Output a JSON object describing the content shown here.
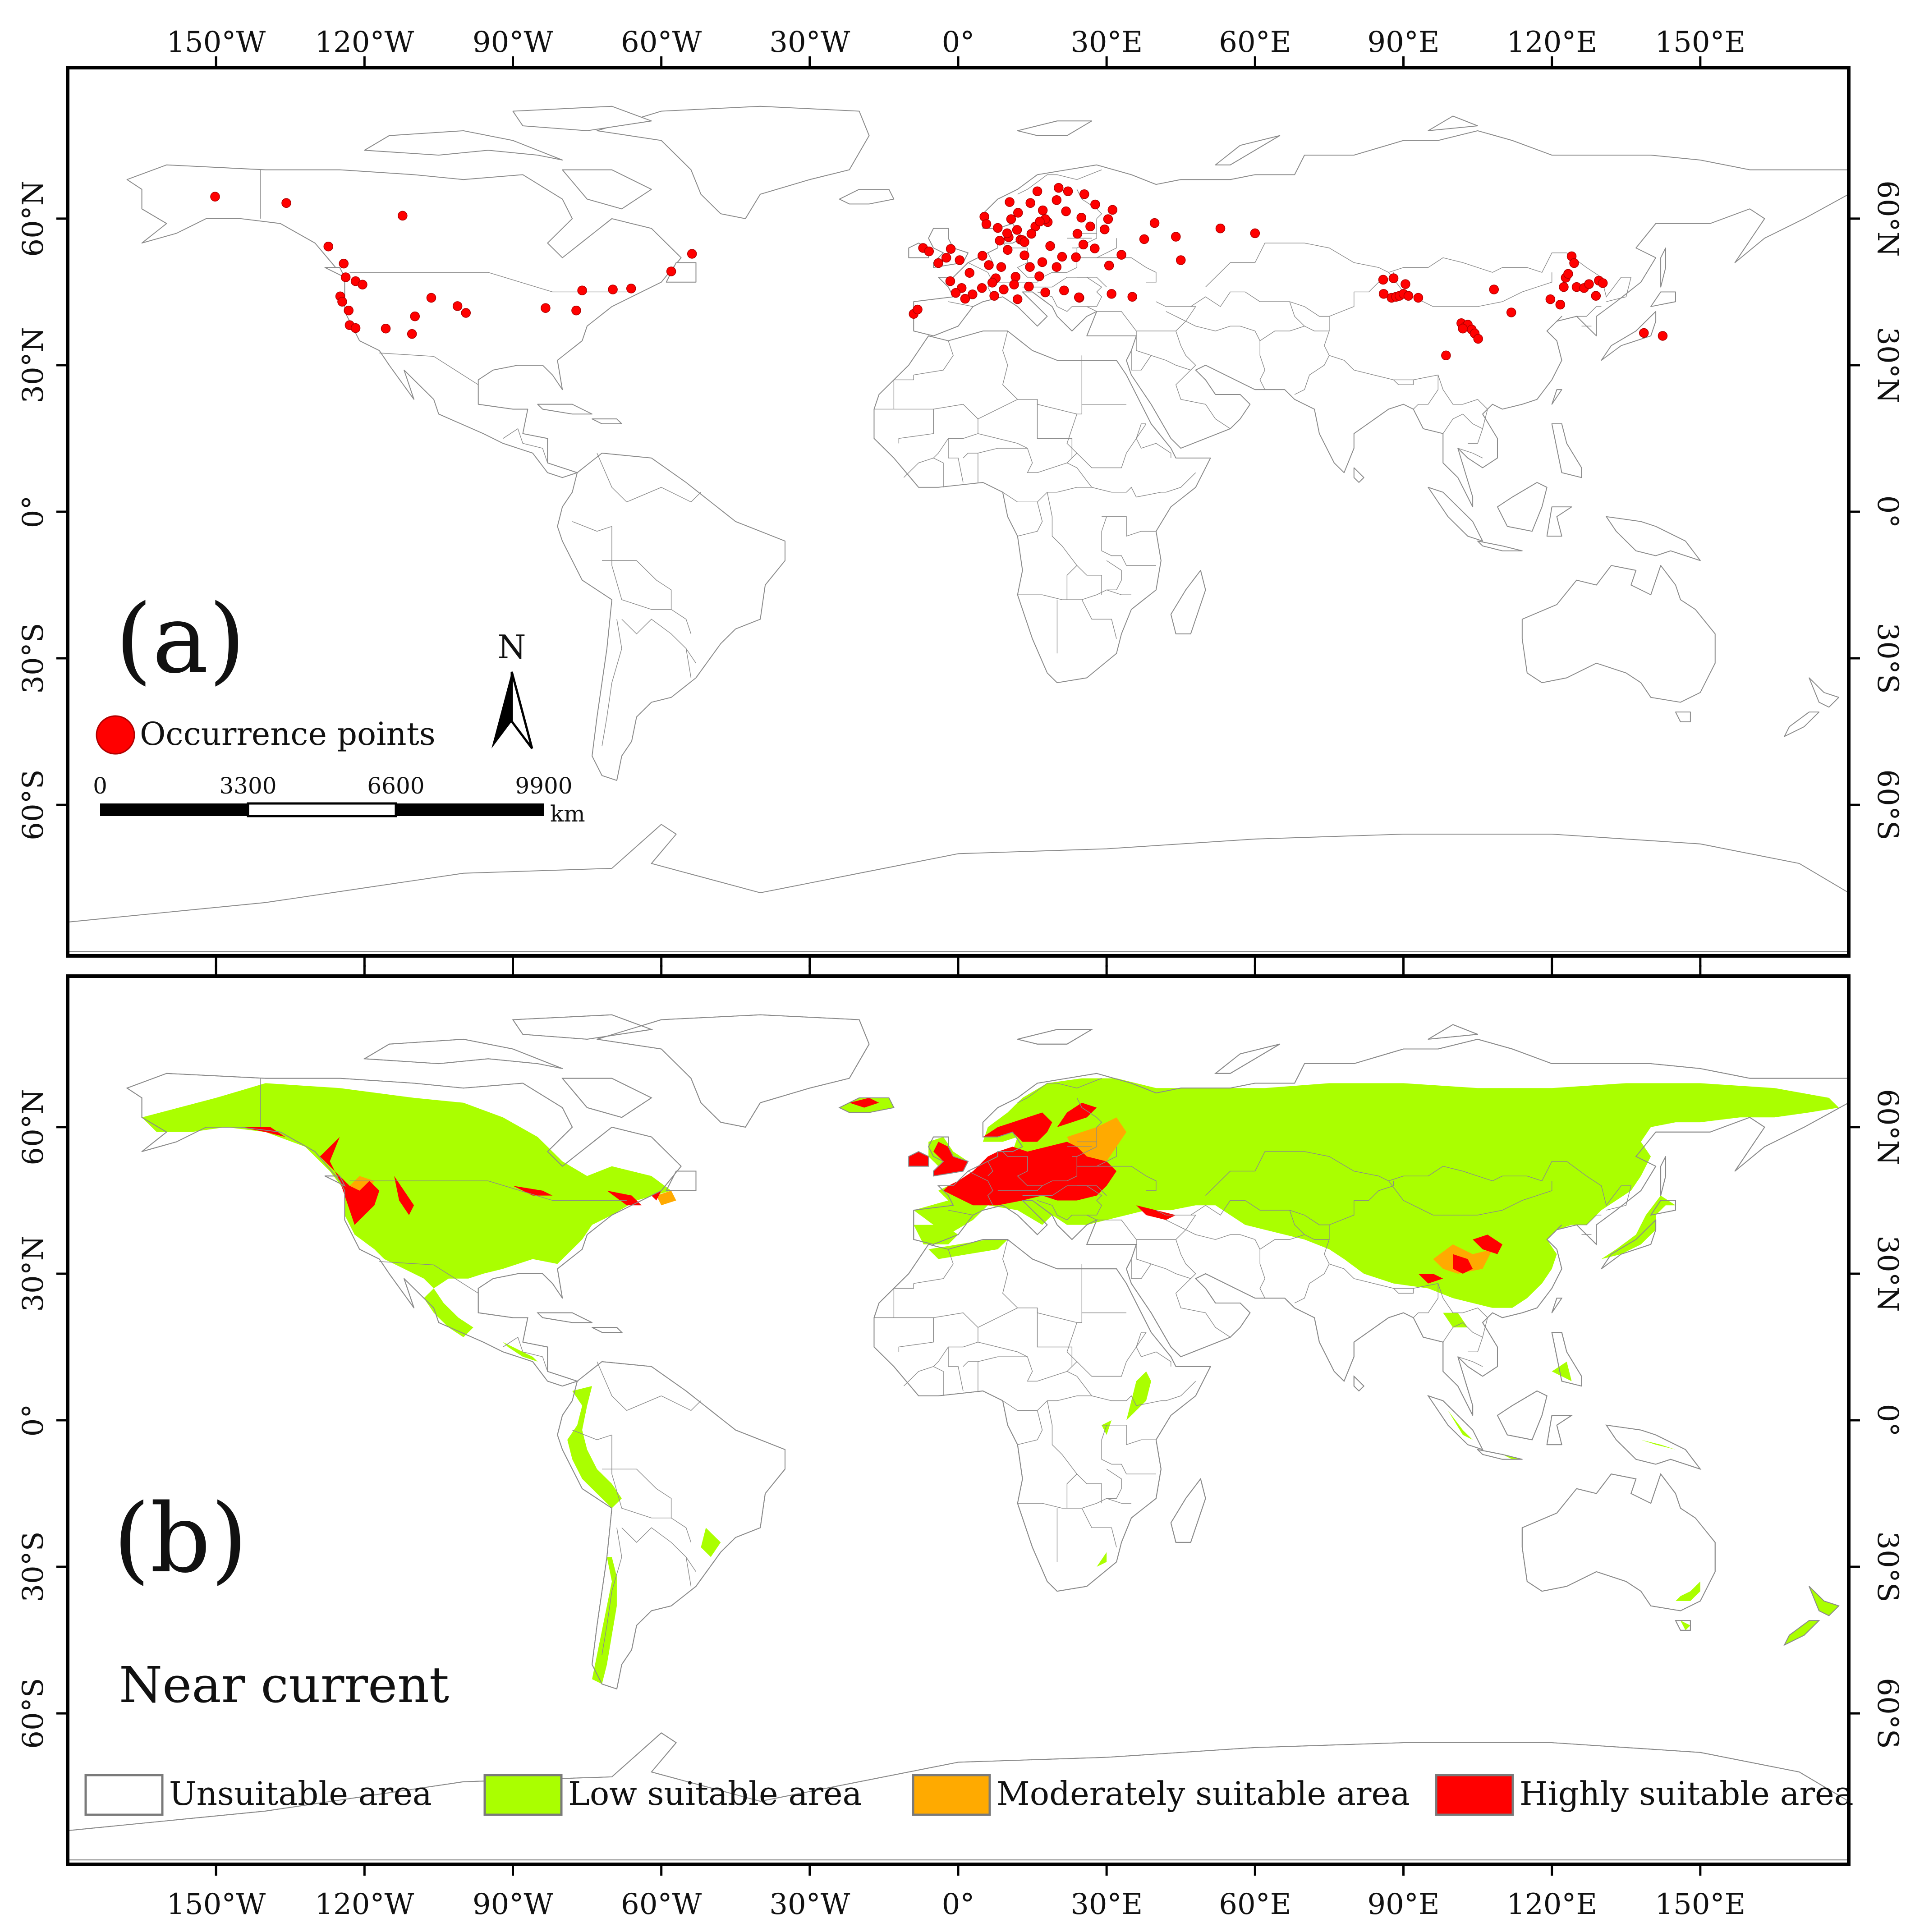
{
  "axes": {
    "lon_labels": [
      "150°W",
      "120°W",
      "90°W",
      "60°W",
      "30°W",
      "0°",
      "30°E",
      "60°E",
      "90°E",
      "120°E",
      "150°E"
    ],
    "lon_values": [
      -150,
      -120,
      -90,
      -60,
      -30,
      0,
      30,
      60,
      90,
      120,
      150
    ],
    "lat_labels": [
      "60°N",
      "30°N",
      "0°",
      "30°S",
      "60°S"
    ],
    "lat_values": [
      60,
      30,
      0,
      -30,
      -60
    ],
    "extent": {
      "lon_min": -180,
      "lon_max": 180,
      "lat_min": -90,
      "lat_max": 90
    }
  },
  "panel_a": {
    "label": "(a)",
    "legend_label": "Occurrence points",
    "point_color": "#ff0000",
    "north_arrow_label": "N",
    "scale_bar": {
      "ticks": [
        "0",
        "3300",
        "6600",
        "9900"
      ],
      "unit": "km"
    },
    "occurrences": [
      [
        -150.2,
        64.5
      ],
      [
        -135.8,
        63.2
      ],
      [
        -127.3,
        54.3
      ],
      [
        -124.2,
        50.8
      ],
      [
        -123.8,
        48.0
      ],
      [
        -121.8,
        47.2
      ],
      [
        -120.4,
        46.5
      ],
      [
        -124.9,
        44.1
      ],
      [
        -124.5,
        43.0
      ],
      [
        -123.2,
        41.2
      ],
      [
        -123.0,
        38.2
      ],
      [
        -121.8,
        37.6
      ],
      [
        -112.3,
        60.6
      ],
      [
        -106.5,
        43.8
      ],
      [
        -101.2,
        42.1
      ],
      [
        -99.5,
        40.7
      ],
      [
        -109.8,
        40.0
      ],
      [
        -110.4,
        36.4
      ],
      [
        -115.7,
        37.5
      ],
      [
        -83.4,
        41.7
      ],
      [
        -69.8,
        45.5
      ],
      [
        -66.1,
        45.7
      ],
      [
        -76.0,
        45.3
      ],
      [
        -77.2,
        41.2
      ],
      [
        -58.0,
        49.2
      ],
      [
        -53.8,
        52.8
      ],
      [
        -9.0,
        40.5
      ],
      [
        -8.2,
        41.4
      ],
      [
        -7.1,
        54.0
      ],
      [
        -5.9,
        53.3
      ],
      [
        -4.0,
        50.9
      ],
      [
        -2.4,
        52.0
      ],
      [
        -1.5,
        53.8
      ],
      [
        0.3,
        51.5
      ],
      [
        2.3,
        48.9
      ],
      [
        4.9,
        52.4
      ],
      [
        6.2,
        50.5
      ],
      [
        7.6,
        47.8
      ],
      [
        8.7,
        50.1
      ],
      [
        10.0,
        53.6
      ],
      [
        11.6,
        48.1
      ],
      [
        13.4,
        52.5
      ],
      [
        14.5,
        50.1
      ],
      [
        16.4,
        48.2
      ],
      [
        17.0,
        51.1
      ],
      [
        19.9,
        50.1
      ],
      [
        21.0,
        52.2
      ],
      [
        18.6,
        54.4
      ],
      [
        12.6,
        55.7
      ],
      [
        10.2,
        56.2
      ],
      [
        9.9,
        57.0
      ],
      [
        11.9,
        57.7
      ],
      [
        13.0,
        55.6
      ],
      [
        15.6,
        58.4
      ],
      [
        18.1,
        59.3
      ],
      [
        17.6,
        59.9
      ],
      [
        16.5,
        59.4
      ],
      [
        14.8,
        56.9
      ],
      [
        10.7,
        59.9
      ],
      [
        10.4,
        63.4
      ],
      [
        5.3,
        60.4
      ],
      [
        5.7,
        58.9
      ],
      [
        8.0,
        58.1
      ],
      [
        12.1,
        61.2
      ],
      [
        14.6,
        63.2
      ],
      [
        17.1,
        61.7
      ],
      [
        19.9,
        63.8
      ],
      [
        20.3,
        66.3
      ],
      [
        16.0,
        65.6
      ],
      [
        22.2,
        65.6
      ],
      [
        25.5,
        65.0
      ],
      [
        24.9,
        60.2
      ],
      [
        27.7,
        62.9
      ],
      [
        21.8,
        61.5
      ],
      [
        26.7,
        58.4
      ],
      [
        24.1,
        56.9
      ],
      [
        25.3,
        54.7
      ],
      [
        27.6,
        53.9
      ],
      [
        23.8,
        52.1
      ],
      [
        30.3,
        59.9
      ],
      [
        31.2,
        61.8
      ],
      [
        29.6,
        57.8
      ],
      [
        33.0,
        52.6
      ],
      [
        30.5,
        50.4
      ],
      [
        35.2,
        44.0
      ],
      [
        37.6,
        55.8
      ],
      [
        44.0,
        56.3
      ],
      [
        45.0,
        51.5
      ],
      [
        -1.6,
        47.2
      ],
      [
        0.7,
        45.8
      ],
      [
        4.8,
        45.8
      ],
      [
        6.9,
        46.9
      ],
      [
        9.2,
        45.5
      ],
      [
        11.3,
        46.5
      ],
      [
        14.3,
        46.1
      ],
      [
        17.6,
        44.9
      ],
      [
        21.4,
        45.3
      ],
      [
        24.5,
        43.8
      ],
      [
        2.9,
        44.5
      ],
      [
        -0.5,
        44.8
      ],
      [
        1.4,
        43.6
      ],
      [
        7.3,
        44.2
      ],
      [
        12.0,
        43.5
      ],
      [
        13.4,
        55.2
      ],
      [
        8.4,
        55.5
      ],
      [
        24.4,
        43.9
      ],
      [
        31.0,
        44.6
      ],
      [
        39.7,
        59.1
      ],
      [
        53.0,
        58.0
      ],
      [
        60.0,
        57.0
      ],
      [
        87.6,
        43.8
      ],
      [
        86.0,
        44.6
      ],
      [
        88.5,
        44.0
      ],
      [
        89.2,
        44.2
      ],
      [
        90.0,
        44.6
      ],
      [
        91.0,
        44.2
      ],
      [
        93.0,
        43.8
      ],
      [
        85.9,
        47.5
      ],
      [
        88.0,
        47.8
      ],
      [
        90.4,
        46.6
      ],
      [
        101.7,
        38.6
      ],
      [
        102.5,
        37.9
      ],
      [
        103.0,
        38.3
      ],
      [
        103.8,
        37.3
      ],
      [
        104.4,
        36.5
      ],
      [
        105.1,
        35.4
      ],
      [
        102.0,
        37.5
      ],
      [
        98.6,
        32.0
      ],
      [
        111.8,
        40.8
      ],
      [
        108.3,
        45.5
      ],
      [
        119.7,
        43.5
      ],
      [
        121.7,
        42.4
      ],
      [
        122.8,
        47.9
      ],
      [
        123.3,
        48.7
      ],
      [
        124.0,
        52.3
      ],
      [
        124.5,
        50.9
      ],
      [
        125.0,
        46.0
      ],
      [
        126.5,
        45.8
      ],
      [
        127.5,
        46.6
      ],
      [
        128.9,
        44.2
      ],
      [
        129.5,
        47.3
      ],
      [
        130.3,
        46.8
      ],
      [
        122.4,
        46.0
      ],
      [
        138.6,
        36.6
      ],
      [
        142.4,
        36.0
      ]
    ]
  },
  "panel_b": {
    "label": "(b)",
    "subtitle": "Near current",
    "legend": [
      {
        "label": "Unsuitable area",
        "color": "#ffffff"
      },
      {
        "label": "Low suitable area",
        "color": "#aaff00"
      },
      {
        "label": "Moderately suitable area",
        "color": "#ffaa00"
      },
      {
        "label": "Highly suitable area",
        "color": "#ff0000"
      }
    ]
  },
  "colors": {
    "border": "#000000",
    "coast": "#8a8a8a",
    "land_fill": "#ffffff"
  }
}
